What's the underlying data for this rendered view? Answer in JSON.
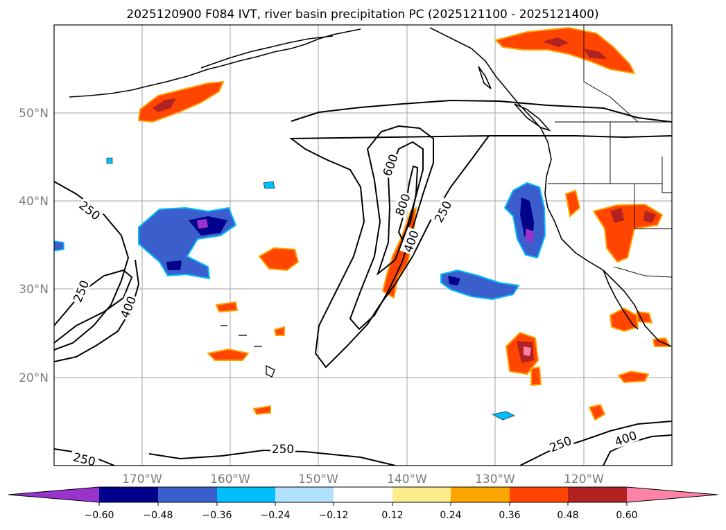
{
  "title": "2025120900 F084 IVT, river basin precipitation PC (2025121100 - 2025121400)",
  "map": {
    "lon_labels": [
      "170°W",
      "160°W",
      "150°W",
      "140°W",
      "130°W",
      "120°W"
    ],
    "lat_labels": [
      "50°N",
      "40°N",
      "30°N",
      "20°N"
    ],
    "ivt_contour_levels": [
      250,
      400,
      600,
      800
    ],
    "contour_labels": [
      "250",
      "250",
      "400",
      "600",
      "800",
      "400",
      "250",
      "250",
      "250",
      "250",
      "400"
    ]
  },
  "colorbar": {
    "tick_labels": [
      "−0.60",
      "−0.48",
      "−0.36",
      "−0.24",
      "−0.12",
      "0.12",
      "0.24",
      "0.36",
      "0.48",
      "0.60"
    ],
    "colors": {
      "under": "#9933cc",
      "b1": "#00008b",
      "b2": "#3a5fcd",
      "b3": "#00bfff",
      "b4": "#b0e2ff",
      "b5": "#ffffff",
      "b6": "#ffec8b",
      "b7": "#ffa500",
      "b8": "#ff4500",
      "b9": "#b22222",
      "over": "#ff83a8"
    }
  }
}
